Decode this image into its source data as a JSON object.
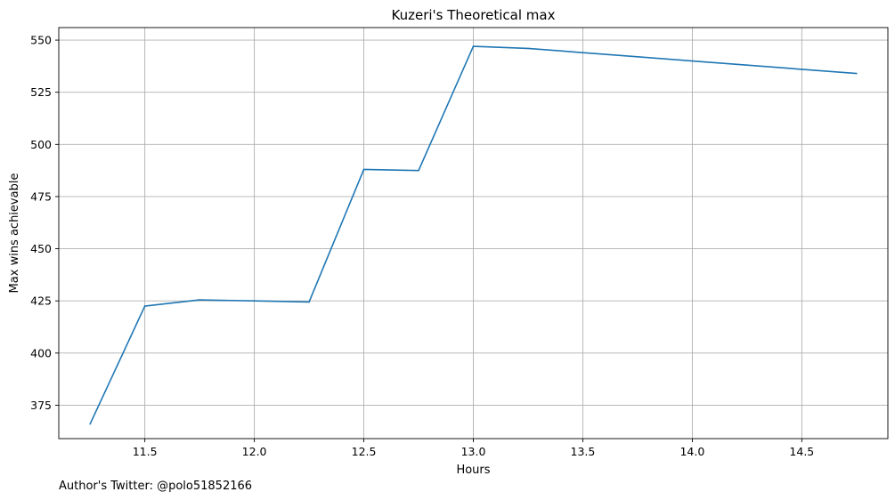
{
  "chart_data": {
    "type": "line",
    "title": "Kuzeri's Theoretical max",
    "xlabel": "Hours",
    "ylabel": "Max wins achievable",
    "footer": "Author's Twitter: @polo51852166",
    "xlim": [
      11.107,
      14.893
    ],
    "ylim": [
      359,
      556
    ],
    "xticks": [
      11.5,
      12.0,
      12.5,
      13.0,
      13.5,
      14.0,
      14.5
    ],
    "xtick_labels": [
      "11.5",
      "12.0",
      "12.5",
      "13.0",
      "13.5",
      "14.0",
      "14.5"
    ],
    "yticks": [
      375,
      400,
      425,
      450,
      475,
      500,
      525,
      550
    ],
    "ytick_labels": [
      "375",
      "400",
      "425",
      "450",
      "475",
      "500",
      "525",
      "550"
    ],
    "grid": true,
    "series": [
      {
        "color": "#1f77b4",
        "x": [
          11.25,
          11.5,
          11.75,
          12.0,
          12.25,
          12.5,
          12.75,
          13.0,
          13.25,
          13.5,
          13.75,
          14.0,
          14.25,
          14.5,
          14.75
        ],
        "y": [
          366,
          422.5,
          425.5,
          425,
          424.5,
          488,
          487.5,
          547,
          546,
          544,
          542,
          540,
          538,
          536,
          534
        ]
      }
    ]
  }
}
